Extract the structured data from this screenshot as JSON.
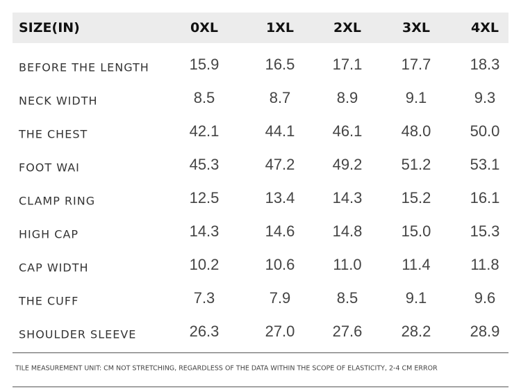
{
  "table": {
    "header": [
      "SIZE(IN)",
      "0XL",
      "1XL",
      "2XL",
      "3XL",
      "4XL"
    ],
    "rows": [
      [
        "BEFORE THE LENGTH",
        "15.9",
        "16.5",
        "17.1",
        "17.7",
        "18.3"
      ],
      [
        "NECK WIDTH",
        "8.5",
        "8.7",
        "8.9",
        "9.1",
        "9.3"
      ],
      [
        "THE CHEST",
        "42.1",
        "44.1",
        "46.1",
        "48.0",
        "50.0"
      ],
      [
        "FOOT WAI",
        "45.3",
        "47.2",
        "49.2",
        "51.2",
        "53.1"
      ],
      [
        "CLAMP RING",
        "12.5",
        "13.4",
        "14.3",
        "15.2",
        "16.1"
      ],
      [
        "HIGH CAP",
        "14.3",
        "14.6",
        "14.8",
        "15.0",
        "15.3"
      ],
      [
        "CAP WIDTH",
        "10.2",
        "10.6",
        "11.0",
        "11.4",
        "11.8"
      ],
      [
        "THE CUFF",
        "7.3",
        "7.9",
        "8.5",
        "9.1",
        "9.6"
      ],
      [
        "SHOULDER SLEEVE",
        "26.3",
        "27.0",
        "27.6",
        "28.2",
        "28.9"
      ]
    ]
  },
  "footnote": "TILE MEASUREMENT UNIT: CM NOT STRETCHING, REGARDLESS OF THE DATA WITHIN THE SCOPE OF ELASTICITY, 2-4 CM ERROR"
}
